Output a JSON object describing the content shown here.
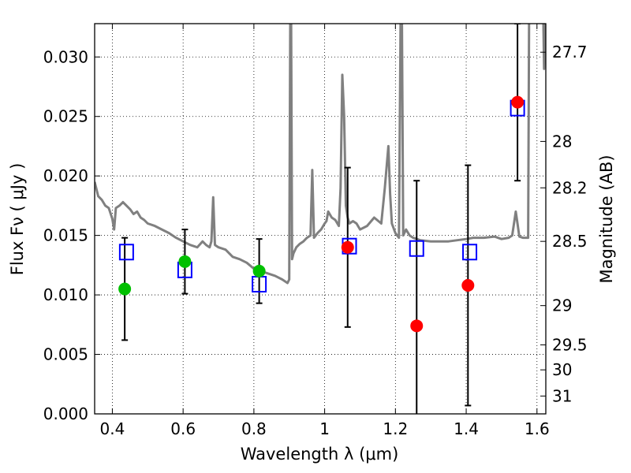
{
  "chart_data": {
    "type": "scatter",
    "xlabel": "Wavelength  λ (μm)",
    "ylabel": "Flux  Fν  ( μJy )",
    "ylabel_right": "Magnitude (AB)",
    "xlim": [
      0.35,
      1.625
    ],
    "ylim": [
      0.0,
      0.0328
    ],
    "x_ticks": [
      0.4,
      0.6,
      0.8,
      1.0,
      1.2,
      1.4,
      1.6
    ],
    "x_tick_labels": [
      "0.4",
      "0.6",
      "0.8",
      "1",
      "1.2",
      "1.4",
      "1.6"
    ],
    "y_ticks": [
      0.0,
      0.005,
      0.01,
      0.015,
      0.02,
      0.025,
      0.03
    ],
    "y_tick_labels": [
      "0.000",
      "0.005",
      "0.010",
      "0.015",
      "0.020",
      "0.025",
      "0.030"
    ],
    "right_ticks": [
      {
        "flux": 0.0304,
        "label": "27.7"
      },
      {
        "flux": 0.0229,
        "label": "28"
      },
      {
        "flux": 0.019,
        "label": "28.2"
      },
      {
        "flux": 0.0145,
        "label": "28.5"
      },
      {
        "flux": 0.0091,
        "label": "29"
      },
      {
        "flux": 0.0058,
        "label": "29.5"
      },
      {
        "flux": 0.0037,
        "label": "30"
      },
      {
        "flux": 0.0015,
        "label": "31"
      }
    ],
    "grid": true,
    "legend": "none",
    "colors": {
      "sed": "#808080",
      "model_points": "#0000ff",
      "green_points": "#00c000",
      "red_points": "#ff0000",
      "errorbars": "#000000"
    },
    "series": [
      {
        "type": "line",
        "x": [
          0.35,
          0.36,
          0.37,
          0.38,
          0.39,
          0.4,
          0.405,
          0.41,
          0.42,
          0.43,
          0.44,
          0.45,
          0.46,
          0.47,
          0.48,
          0.49,
          0.5,
          0.52,
          0.54,
          0.56,
          0.58,
          0.6,
          0.62,
          0.64,
          0.655,
          0.665,
          0.675,
          0.68,
          0.685,
          0.69,
          0.7,
          0.72,
          0.74,
          0.76,
          0.78,
          0.8,
          0.82,
          0.84,
          0.86,
          0.88,
          0.895,
          0.9,
          0.903,
          0.905,
          0.908,
          0.912,
          0.92,
          0.93,
          0.94,
          0.95,
          0.96,
          0.965,
          0.97,
          0.975,
          0.98,
          0.99,
          1.0,
          1.005,
          1.01,
          1.02,
          1.03,
          1.04,
          1.045,
          1.05,
          1.055,
          1.06,
          1.065,
          1.07,
          1.08,
          1.09,
          1.1,
          1.12,
          1.14,
          1.16,
          1.17,
          1.18,
          1.185,
          1.19,
          1.2,
          1.21,
          1.215,
          1.218,
          1.222,
          1.23,
          1.24,
          1.25,
          1.27,
          1.3,
          1.35,
          1.4,
          1.42,
          1.45,
          1.48,
          1.5,
          1.52,
          1.53,
          1.54,
          1.545,
          1.55,
          1.56,
          1.575,
          1.578,
          1.582,
          1.59,
          1.6,
          1.61,
          1.618,
          1.62,
          1.625
        ],
        "y": [
          0.0195,
          0.0183,
          0.018,
          0.0175,
          0.0173,
          0.0164,
          0.0155,
          0.0173,
          0.0175,
          0.0178,
          0.0175,
          0.0172,
          0.0168,
          0.017,
          0.0165,
          0.0163,
          0.016,
          0.0158,
          0.0155,
          0.0152,
          0.0148,
          0.0145,
          0.0142,
          0.014,
          0.0145,
          0.0142,
          0.014,
          0.0145,
          0.0182,
          0.0142,
          0.014,
          0.0138,
          0.0132,
          0.013,
          0.0127,
          0.0122,
          0.012,
          0.0118,
          0.0116,
          0.0113,
          0.011,
          0.0113,
          0.035,
          0.035,
          0.013,
          0.0135,
          0.014,
          0.0143,
          0.0145,
          0.0148,
          0.015,
          0.0205,
          0.0148,
          0.015,
          0.0152,
          0.0155,
          0.016,
          0.0162,
          0.017,
          0.0165,
          0.0163,
          0.0158,
          0.019,
          0.0285,
          0.025,
          0.0175,
          0.0165,
          0.016,
          0.0162,
          0.016,
          0.0155,
          0.0158,
          0.0165,
          0.016,
          0.019,
          0.0225,
          0.0185,
          0.016,
          0.0152,
          0.0148,
          0.035,
          0.035,
          0.015,
          0.0155,
          0.015,
          0.0148,
          0.0146,
          0.0145,
          0.0145,
          0.0147,
          0.0148,
          0.0148,
          0.0149,
          0.0147,
          0.0148,
          0.015,
          0.017,
          0.016,
          0.0149,
          0.0148,
          0.0148,
          0.035,
          0.035,
          0.033,
          0.033,
          0.033,
          0.033,
          0.029,
          0.035
        ]
      },
      {
        "type": "scatter",
        "marker": "open-square",
        "x": [
          0.44,
          0.605,
          0.815,
          1.07,
          1.26,
          1.41,
          1.545
        ],
        "y": [
          0.0136,
          0.0121,
          0.0109,
          0.0141,
          0.0139,
          0.0136,
          0.0257
        ]
      },
      {
        "type": "scatter",
        "marker": "filled-circle",
        "color": "green",
        "x": [
          0.435,
          0.605,
          0.815
        ],
        "y": [
          0.0105,
          0.0128,
          0.012
        ],
        "err": [
          0.0043,
          0.0027,
          0.0027
        ]
      },
      {
        "type": "scatter",
        "marker": "filled-circle",
        "color": "red",
        "x": [
          1.065,
          1.26,
          1.405,
          1.545
        ],
        "y": [
          0.014,
          0.0074,
          0.0108,
          0.0262
        ],
        "err": [
          0.0067,
          0.0122,
          0.0101,
          0.0066
        ]
      }
    ]
  }
}
